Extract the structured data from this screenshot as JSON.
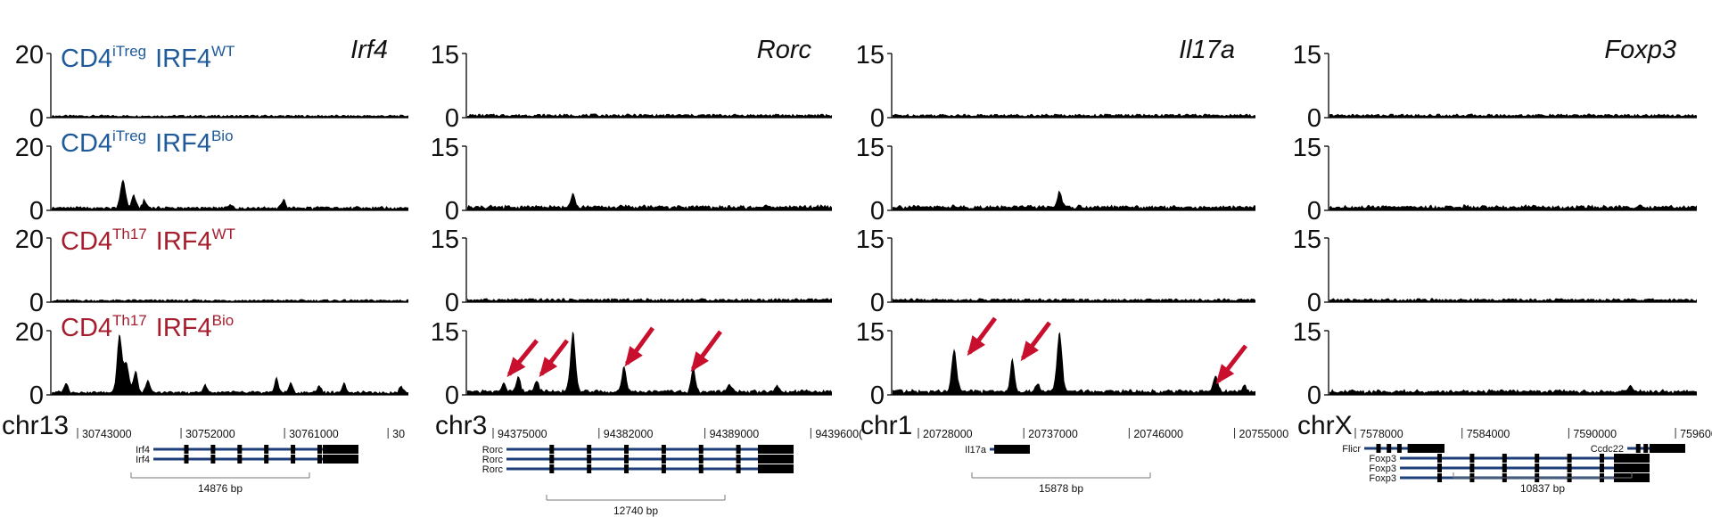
{
  "colors": {
    "blue": "#1f5a9a",
    "red": "#a51e2d",
    "arrow": "#c8102e",
    "track": "#000000",
    "gene": "#1e3f7a"
  },
  "samples": [
    {
      "cell": "CD4",
      "sup": "iTreg",
      "prot": "IRF4",
      "psup": "WT",
      "color": "blue"
    },
    {
      "cell": "CD4",
      "sup": "iTreg",
      "prot": "IRF4",
      "psup": "Bio",
      "color": "blue"
    },
    {
      "cell": "CD4",
      "sup": "Th17",
      "prot": "IRF4",
      "psup": "WT",
      "color": "red"
    },
    {
      "cell": "CD4",
      "sup": "Th17",
      "prot": "IRF4",
      "psup": "Bio",
      "color": "red"
    }
  ],
  "chart_data": [
    {
      "type": "area",
      "gene": "Irf4",
      "chrom": "chr13",
      "ymax": "20",
      "ymin": "0",
      "ylim": [
        0,
        20
      ],
      "coords": [
        "30743000",
        "30752000",
        "30761000",
        "30"
      ],
      "scalebar": "14876 bp",
      "transcripts": [
        "Irf4",
        "Irf4"
      ],
      "series": [
        {
          "peaks": []
        },
        {
          "peaks": [
            [
              0.2,
              9
            ],
            [
              0.23,
              4
            ],
            [
              0.26,
              2.5
            ],
            [
              0.65,
              2.5
            ],
            [
              0.5,
              1.2
            ]
          ]
        },
        {
          "peaks": []
        },
        {
          "peaks": [
            [
              0.04,
              3
            ],
            [
              0.19,
              18
            ],
            [
              0.21,
              9
            ],
            [
              0.235,
              7
            ],
            [
              0.27,
              4
            ],
            [
              0.43,
              2.5
            ],
            [
              0.63,
              4.5
            ],
            [
              0.67,
              3
            ],
            [
              0.75,
              2.2
            ],
            [
              0.82,
              3
            ],
            [
              0.98,
              2
            ]
          ]
        }
      ]
    },
    {
      "type": "area",
      "gene": "Rorc",
      "chrom": "chr3",
      "ymax": "15",
      "ymin": "0",
      "ylim": [
        0,
        15
      ],
      "coords": [
        "94375000",
        "94382000",
        "94389000",
        "9439600("
      ],
      "scalebar": "12740 bp",
      "transcripts": [
        "Rorc",
        "Rorc",
        "Rorc"
      ],
      "series": [
        {
          "peaks": []
        },
        {
          "peaks": [
            [
              0.29,
              3.5
            ]
          ]
        },
        {
          "peaks": []
        },
        {
          "peaks": [
            [
              0.1,
              2
            ],
            [
              0.14,
              3.5
            ],
            [
              0.19,
              2.5
            ],
            [
              0.29,
              14
            ],
            [
              0.43,
              6
            ],
            [
              0.62,
              5.5
            ],
            [
              0.72,
              1.5
            ],
            [
              0.85,
              1.2
            ]
          ]
        }
      ]
    },
    {
      "type": "area",
      "gene": "Il17a",
      "chrom": "chr1",
      "ymax": "15",
      "ymin": "0",
      "ylim": [
        0,
        15
      ],
      "coords": [
        "20728000",
        "20737000",
        "20746000",
        "20755000"
      ],
      "scalebar": "15878 bp",
      "transcripts": [
        "Il17a"
      ],
      "series": [
        {
          "peaks": []
        },
        {
          "peaks": [
            [
              0.46,
              4
            ]
          ]
        },
        {
          "peaks": []
        },
        {
          "peaks": [
            [
              0.17,
              10
            ],
            [
              0.33,
              8
            ],
            [
              0.4,
              2
            ],
            [
              0.46,
              14.5
            ],
            [
              0.89,
              4
            ],
            [
              0.97,
              1.5
            ]
          ]
        }
      ]
    },
    {
      "type": "area",
      "gene": "Foxp3",
      "chrom": "chrX",
      "ymax": "15",
      "ymin": "0",
      "ylim": [
        0,
        15
      ],
      "coords": [
        "7578000",
        "7584000",
        "7590000",
        "759600("
      ],
      "scalebar": "10837 bp",
      "transcripts": [
        "Flicr",
        "Ccdc22",
        "Foxp3",
        "Foxp3",
        "Foxp3"
      ],
      "series": [
        {
          "peaks": []
        },
        {
          "peaks": []
        },
        {
          "peaks": []
        },
        {
          "peaks": [
            [
              0.82,
              1.5
            ]
          ]
        }
      ]
    }
  ]
}
